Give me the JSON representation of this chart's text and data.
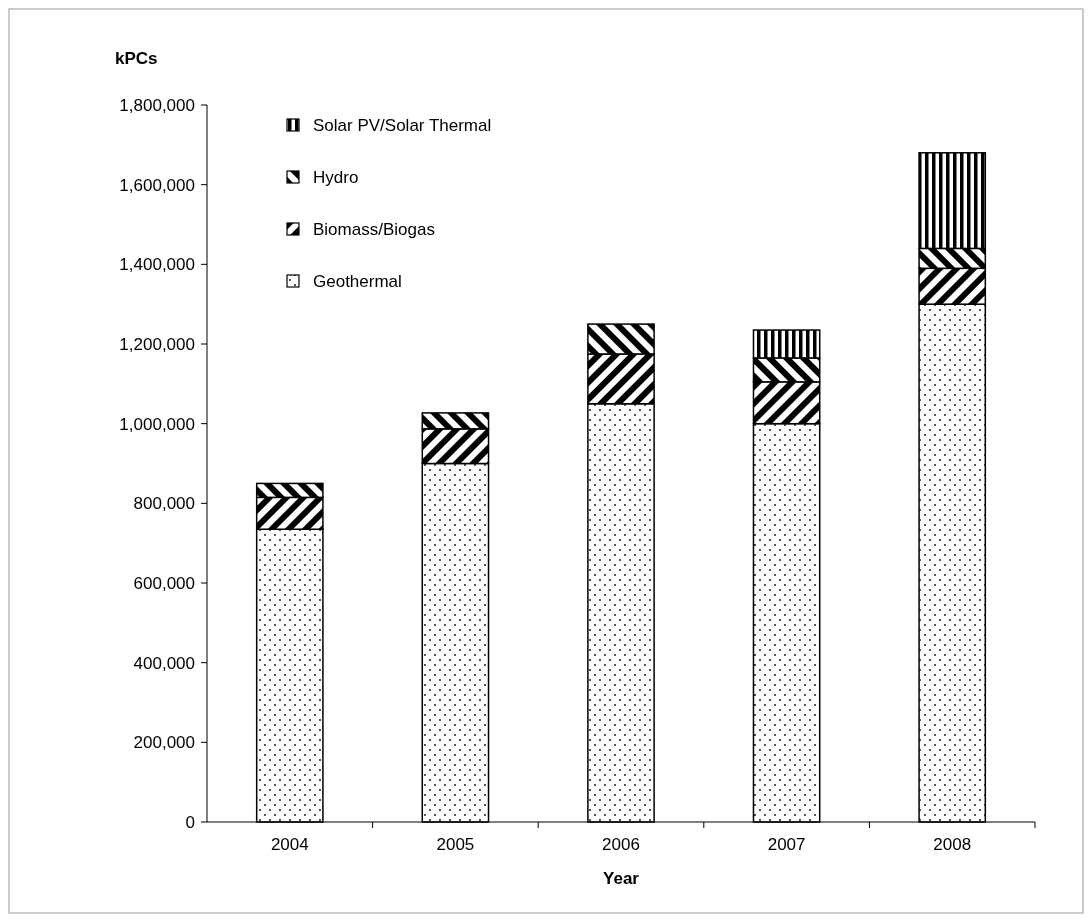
{
  "chart_data": {
    "type": "bar",
    "stacked": true,
    "xlabel": "Year",
    "ylabel": "kPCs",
    "categories": [
      "2004",
      "2005",
      "2006",
      "2007",
      "2008"
    ],
    "series": [
      {
        "name": "Geothermal",
        "color": "#000000",
        "values": [
          735000,
          900000,
          1050000,
          1000000,
          1300000
        ]
      },
      {
        "name": "Biomass/Biogas",
        "color": "#000000",
        "values": [
          80000,
          87000,
          125000,
          105000,
          90000
        ]
      },
      {
        "name": "Hydro",
        "color": "#000000",
        "values": [
          35000,
          40000,
          75000,
          60000,
          50000
        ]
      },
      {
        "name": "Solar PV/Solar Thermal",
        "color": "#000000",
        "values": [
          null,
          null,
          null,
          70000,
          240000
        ]
      }
    ],
    "ylim": [
      0,
      1800000
    ],
    "yticks": [
      {
        "value": 0,
        "label": "0"
      },
      {
        "value": 200000,
        "label": "200,000"
      },
      {
        "value": 400000,
        "label": "400,000"
      },
      {
        "value": 600000,
        "label": "600,000"
      },
      {
        "value": 800000,
        "label": "800,000"
      },
      {
        "value": 1000000,
        "label": "1,000,000"
      },
      {
        "value": 1200000,
        "label": "1,200,000"
      },
      {
        "value": 1400000,
        "label": "1,400,000"
      },
      {
        "value": 1600000,
        "label": "1,600,000"
      },
      {
        "value": 1800000,
        "label": "1,800,000"
      }
    ],
    "grid": false,
    "legend": "top left"
  }
}
